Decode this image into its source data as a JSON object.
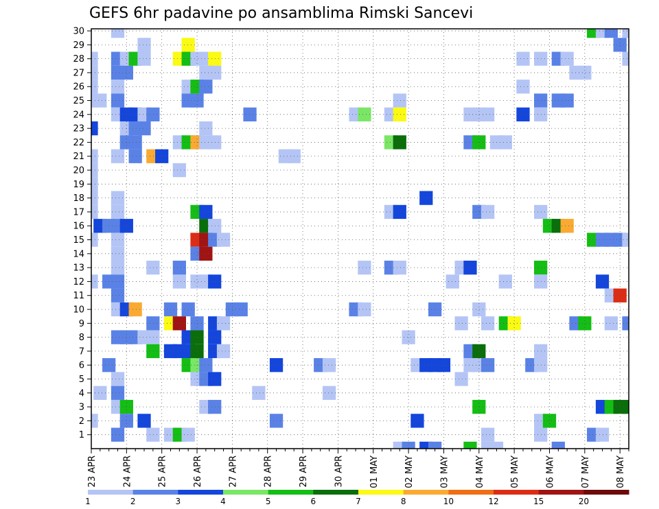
{
  "chart_data": {
    "type": "heatmap",
    "title": "GEFS 6hr padavine po ansamblima Rimski Sancevi",
    "xlabel": "",
    "ylabel": "",
    "x_tick_labels": [
      "23 APR",
      "24 APR",
      "25 APR",
      "26 APR",
      "27 APR",
      "28 APR",
      "29 APR",
      "30 APR",
      "01 MAY",
      "02 MAY",
      "03 MAY",
      "04 MAY",
      "05 MAY",
      "06 MAY",
      "07 MAY",
      "08 MAY"
    ],
    "y_tick_labels": [
      "1",
      "2",
      "3",
      "4",
      "5",
      "6",
      "7",
      "8",
      "9",
      "10",
      "11",
      "12",
      "13",
      "14",
      "15",
      "16",
      "17",
      "18",
      "19",
      "20",
      "21",
      "22",
      "23",
      "24",
      "25",
      "26",
      "27",
      "28",
      "29",
      "30"
    ],
    "x_range_steps": [
      0,
      61
    ],
    "y_range_members": [
      0,
      30
    ],
    "grid": true,
    "colorbar": {
      "position": "bottom",
      "bounds": [
        1,
        2,
        3,
        4,
        5,
        6,
        7,
        8,
        10,
        12,
        15,
        20
      ],
      "tick_labels": [
        "1",
        "2",
        "3",
        "4",
        "5",
        "6",
        "7",
        "8",
        "10",
        "12",
        "15",
        "20"
      ],
      "colors": [
        "#b4c5f5",
        "#5a82e6",
        "#1446dc",
        "#7ae666",
        "#14be14",
        "#0a6e0a",
        "#fafa14",
        "#faaa32",
        "#f06e14",
        "#dc2d14",
        "#a01414",
        "#6e0a0a"
      ]
    },
    "levels_by_color_index": [
      "1-2",
      "2-3",
      "3-4",
      "4-5",
      "5-6",
      "6-7",
      "7-8",
      "8-10",
      "10-12",
      "12-15",
      "15-20",
      ">20"
    ],
    "cells_note": "each cell: [step (6-hour step from 23 APR 00Z), member (1-30), color index 0-11]",
    "cells": [
      [
        0,
        26,
        0
      ],
      [
        0,
        27,
        0
      ],
      [
        0,
        28,
        0
      ],
      [
        0,
        25,
        0
      ],
      [
        0,
        23,
        2
      ],
      [
        0,
        21,
        0
      ],
      [
        0,
        20,
        0
      ],
      [
        0,
        19,
        0
      ],
      [
        0,
        18,
        0
      ],
      [
        0,
        17,
        0
      ],
      [
        0,
        15,
        0
      ],
      [
        0,
        12,
        0
      ],
      [
        0,
        2,
        0
      ],
      [
        1,
        25,
        0
      ],
      [
        1,
        16,
        2
      ],
      [
        1,
        4,
        0
      ],
      [
        2,
        16,
        1
      ],
      [
        2,
        12,
        1
      ],
      [
        2,
        6,
        1
      ],
      [
        3,
        30,
        0
      ],
      [
        3,
        28,
        1
      ],
      [
        3,
        27,
        1
      ],
      [
        3,
        26,
        0
      ],
      [
        3,
        25,
        1
      ],
      [
        3,
        24,
        0
      ],
      [
        3,
        21,
        0
      ],
      [
        3,
        18,
        0
      ],
      [
        3,
        17,
        0
      ],
      [
        3,
        16,
        1
      ],
      [
        3,
        15,
        0
      ],
      [
        3,
        14,
        0
      ],
      [
        3,
        13,
        0
      ],
      [
        3,
        12,
        1
      ],
      [
        3,
        11,
        1
      ],
      [
        3,
        10,
        0
      ],
      [
        3,
        8,
        1
      ],
      [
        3,
        5,
        0
      ],
      [
        3,
        4,
        1
      ],
      [
        3,
        3,
        0
      ],
      [
        3,
        1,
        1
      ],
      [
        4,
        28,
        0
      ],
      [
        4,
        27,
        1
      ],
      [
        4,
        24,
        2
      ],
      [
        4,
        23,
        0
      ],
      [
        4,
        22,
        1
      ],
      [
        4,
        16,
        2
      ],
      [
        4,
        10,
        2
      ],
      [
        4,
        8,
        1
      ],
      [
        4,
        3,
        4
      ],
      [
        4,
        2,
        1
      ],
      [
        5,
        28,
        4
      ],
      [
        5,
        24,
        2
      ],
      [
        5,
        23,
        1
      ],
      [
        5,
        22,
        1
      ],
      [
        5,
        21,
        1
      ],
      [
        5,
        10,
        7
      ],
      [
        5,
        8,
        1
      ],
      [
        6,
        29,
        0
      ],
      [
        6,
        28,
        0
      ],
      [
        6,
        24,
        0
      ],
      [
        6,
        23,
        1
      ],
      [
        6,
        8,
        0
      ],
      [
        6,
        2,
        2
      ],
      [
        7,
        24,
        1
      ],
      [
        7,
        21,
        7
      ],
      [
        7,
        13,
        0
      ],
      [
        7,
        9,
        1
      ],
      [
        7,
        8,
        0
      ],
      [
        7,
        7,
        4
      ],
      [
        7,
        1,
        0
      ],
      [
        8,
        21,
        2
      ],
      [
        9,
        10,
        1
      ],
      [
        9,
        9,
        6
      ],
      [
        9,
        7,
        2
      ],
      [
        9,
        1,
        0
      ],
      [
        10,
        28,
        6
      ],
      [
        10,
        22,
        0
      ],
      [
        10,
        20,
        0
      ],
      [
        10,
        12,
        0
      ],
      [
        10,
        13,
        1
      ],
      [
        10,
        9,
        10
      ],
      [
        10,
        7,
        2
      ],
      [
        10,
        1,
        4
      ],
      [
        11,
        29,
        6
      ],
      [
        11,
        28,
        4
      ],
      [
        11,
        26,
        0
      ],
      [
        11,
        25,
        1
      ],
      [
        11,
        22,
        4
      ],
      [
        11,
        10,
        1
      ],
      [
        11,
        8,
        2
      ],
      [
        11,
        7,
        2
      ],
      [
        11,
        6,
        4
      ],
      [
        11,
        1,
        0
      ],
      [
        12,
        28,
        0
      ],
      [
        12,
        26,
        4
      ],
      [
        12,
        25,
        1
      ],
      [
        12,
        22,
        7
      ],
      [
        12,
        17,
        4
      ],
      [
        12,
        15,
        9
      ],
      [
        12,
        14,
        1
      ],
      [
        12,
        12,
        0
      ],
      [
        12,
        9,
        1
      ],
      [
        12,
        8,
        5
      ],
      [
        12,
        7,
        5
      ],
      [
        12,
        6,
        3
      ],
      [
        12,
        5,
        0
      ],
      [
        13,
        28,
        0
      ],
      [
        13,
        27,
        0
      ],
      [
        13,
        26,
        1
      ],
      [
        13,
        23,
        0
      ],
      [
        13,
        22,
        0
      ],
      [
        13,
        17,
        2
      ],
      [
        13,
        16,
        5
      ],
      [
        13,
        15,
        10
      ],
      [
        13,
        14,
        10
      ],
      [
        13,
        12,
        0
      ],
      [
        13,
        6,
        1
      ],
      [
        13,
        5,
        1
      ],
      [
        13,
        3,
        0
      ],
      [
        14,
        28,
        6
      ],
      [
        14,
        27,
        0
      ],
      [
        14,
        22,
        0
      ],
      [
        14,
        15,
        1
      ],
      [
        14,
        16,
        0
      ],
      [
        14,
        12,
        2
      ],
      [
        14,
        9,
        2
      ],
      [
        14,
        8,
        2
      ],
      [
        14,
        7,
        2
      ],
      [
        14,
        5,
        2
      ],
      [
        14,
        3,
        1
      ],
      [
        15,
        15,
        0
      ],
      [
        15,
        9,
        0
      ],
      [
        15,
        7,
        0
      ],
      [
        16,
        10,
        1
      ],
      [
        17,
        10,
        1
      ],
      [
        18,
        24,
        1
      ],
      [
        19,
        4,
        0
      ],
      [
        21,
        6,
        2
      ],
      [
        21,
        2,
        1
      ],
      [
        22,
        21,
        0
      ],
      [
        23,
        21,
        0
      ],
      [
        26,
        6,
        1
      ],
      [
        27,
        6,
        0
      ],
      [
        27,
        4,
        0
      ],
      [
        30,
        24,
        0
      ],
      [
        30,
        10,
        1
      ],
      [
        31,
        24,
        3
      ],
      [
        31,
        13,
        0
      ],
      [
        31,
        10,
        0
      ],
      [
        34,
        24,
        0
      ],
      [
        34,
        22,
        3
      ],
      [
        34,
        17,
        0
      ],
      [
        34,
        13,
        1
      ],
      [
        35,
        25,
        0
      ],
      [
        35,
        24,
        6
      ],
      [
        35,
        22,
        5
      ],
      [
        35,
        17,
        2
      ],
      [
        35,
        13,
        0
      ],
      [
        35,
        0,
        0
      ],
      [
        36,
        8,
        0
      ],
      [
        36,
        0,
        1
      ],
      [
        37,
        6,
        0
      ],
      [
        37,
        2,
        2
      ],
      [
        38,
        18,
        2
      ],
      [
        38,
        6,
        2
      ],
      [
        38,
        0,
        2
      ],
      [
        39,
        10,
        1
      ],
      [
        39,
        6,
        2
      ],
      [
        39,
        0,
        1
      ],
      [
        40,
        6,
        2
      ],
      [
        41,
        12,
        0
      ],
      [
        42,
        13,
        0
      ],
      [
        42,
        9,
        0
      ],
      [
        42,
        5,
        0
      ],
      [
        43,
        24,
        0
      ],
      [
        43,
        22,
        1
      ],
      [
        43,
        13,
        2
      ],
      [
        43,
        7,
        1
      ],
      [
        43,
        6,
        0
      ],
      [
        43,
        0,
        4
      ],
      [
        44,
        24,
        0
      ],
      [
        44,
        22,
        4
      ],
      [
        44,
        17,
        1
      ],
      [
        44,
        10,
        0
      ],
      [
        44,
        7,
        5
      ],
      [
        44,
        6,
        0
      ],
      [
        44,
        3,
        4
      ],
      [
        45,
        24,
        0
      ],
      [
        45,
        17,
        0
      ],
      [
        45,
        9,
        0
      ],
      [
        45,
        6,
        1
      ],
      [
        45,
        1,
        0
      ],
      [
        45,
        0,
        0
      ],
      [
        46,
        22,
        0
      ],
      [
        46,
        0,
        0
      ],
      [
        47,
        22,
        0
      ],
      [
        47,
        12,
        0
      ],
      [
        47,
        9,
        4
      ],
      [
        48,
        9,
        6
      ],
      [
        49,
        28,
        0
      ],
      [
        49,
        26,
        0
      ],
      [
        49,
        24,
        2
      ],
      [
        50,
        6,
        1
      ],
      [
        51,
        25,
        1
      ],
      [
        51,
        24,
        0
      ],
      [
        51,
        28,
        0
      ],
      [
        51,
        17,
        0
      ],
      [
        51,
        13,
        4
      ],
      [
        51,
        12,
        0
      ],
      [
        51,
        7,
        0
      ],
      [
        51,
        6,
        0
      ],
      [
        51,
        2,
        0
      ],
      [
        51,
        1,
        0
      ],
      [
        52,
        16,
        4
      ],
      [
        52,
        2,
        4
      ],
      [
        53,
        16,
        5
      ],
      [
        53,
        25,
        1
      ],
      [
        53,
        28,
        1
      ],
      [
        53,
        0,
        1
      ],
      [
        54,
        28,
        0
      ],
      [
        54,
        25,
        1
      ],
      [
        54,
        16,
        7
      ],
      [
        55,
        27,
        0
      ],
      [
        55,
        9,
        1
      ],
      [
        56,
        27,
        0
      ],
      [
        56,
        9,
        4
      ],
      [
        57,
        30,
        4
      ],
      [
        57,
        15,
        4
      ],
      [
        57,
        1,
        1
      ],
      [
        58,
        30,
        0
      ],
      [
        58,
        15,
        1
      ],
      [
        58,
        12,
        2
      ],
      [
        58,
        3,
        2
      ],
      [
        58,
        1,
        0
      ],
      [
        59,
        30,
        1
      ],
      [
        59,
        15,
        1
      ],
      [
        59,
        11,
        0
      ],
      [
        59,
        9,
        0
      ],
      [
        59,
        3,
        4
      ],
      [
        60,
        29,
        1
      ],
      [
        60,
        15,
        1
      ],
      [
        60,
        11,
        9
      ],
      [
        60,
        3,
        5
      ],
      [
        61,
        30,
        0
      ],
      [
        61,
        28,
        0
      ],
      [
        61,
        15,
        0
      ],
      [
        61,
        9,
        1
      ],
      [
        61,
        3,
        5
      ]
    ]
  }
}
